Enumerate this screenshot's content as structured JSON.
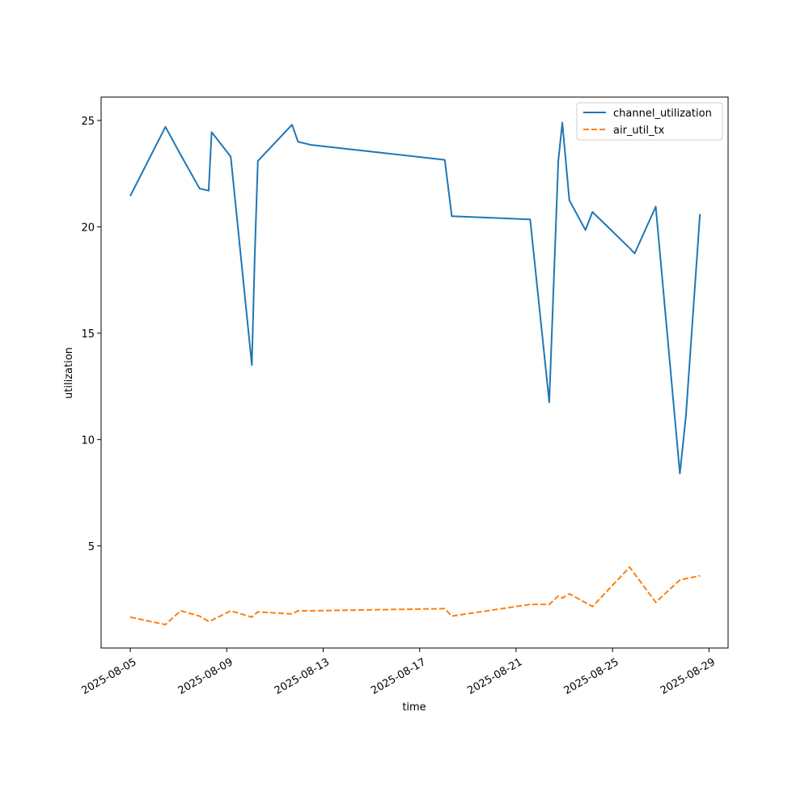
{
  "chart_data": {
    "type": "line",
    "title": "",
    "xlabel": "time",
    "ylabel": "utilization",
    "x_ticks": [
      "2025-08-05",
      "2025-08-09",
      "2025-08-13",
      "2025-08-17",
      "2025-08-21",
      "2025-08-25",
      "2025-08-29"
    ],
    "y_ticks": [
      "5",
      "10",
      "15",
      "20",
      "25"
    ],
    "xlim": [
      "2025-08-03T19:00",
      "2025-08-29T19:00"
    ],
    "ylim": [
      0.2,
      26.1
    ],
    "grid": false,
    "legend_position": "top-right",
    "series": [
      {
        "name": "channel_utilization",
        "color": "#1f77b4",
        "dash": "solid",
        "points": [
          [
            "2025-08-05T00:00",
            21.45
          ],
          [
            "2025-08-06T11:00",
            24.7
          ],
          [
            "2025-08-07T02:00",
            23.4
          ],
          [
            "2025-08-07T21:00",
            21.8
          ],
          [
            "2025-08-08T06:00",
            21.7
          ],
          [
            "2025-08-08T09:00",
            24.45
          ],
          [
            "2025-08-09T04:00",
            23.3
          ],
          [
            "2025-08-10T01:00",
            13.5
          ],
          [
            "2025-08-10T04:00",
            18.8
          ],
          [
            "2025-08-10T07:00",
            23.1
          ],
          [
            "2025-08-11T17:00",
            24.8
          ],
          [
            "2025-08-11T23:00",
            24.0
          ],
          [
            "2025-08-12T12:00",
            23.85
          ],
          [
            "2025-08-18T01:00",
            23.15
          ],
          [
            "2025-08-18T08:00",
            20.5
          ],
          [
            "2025-08-21T14:00",
            20.35
          ],
          [
            "2025-08-22T09:00",
            11.75
          ],
          [
            "2025-08-22T18:00",
            23.1
          ],
          [
            "2025-08-22T22:00",
            24.9
          ],
          [
            "2025-08-23T05:00",
            21.25
          ],
          [
            "2025-08-23T21:00",
            19.85
          ],
          [
            "2025-08-24T04:00",
            20.7
          ],
          [
            "2025-08-25T17:00",
            19.0
          ],
          [
            "2025-08-25T22:00",
            18.75
          ],
          [
            "2025-08-26T19:00",
            20.95
          ],
          [
            "2025-08-27T19:00",
            8.4
          ],
          [
            "2025-08-28T01:00",
            11.1
          ],
          [
            "2025-08-28T15:00",
            20.6
          ]
        ]
      },
      {
        "name": "air_util_tx",
        "color": "#ff7f0e",
        "dash": "dashed",
        "points": [
          [
            "2025-08-05T00:00",
            1.65
          ],
          [
            "2025-08-06T11:00",
            1.3
          ],
          [
            "2025-08-07T02:00",
            1.95
          ],
          [
            "2025-08-07T21:00",
            1.7
          ],
          [
            "2025-08-08T06:00",
            1.45
          ],
          [
            "2025-08-08T09:00",
            1.5
          ],
          [
            "2025-08-09T04:00",
            1.95
          ],
          [
            "2025-08-10T01:00",
            1.65
          ],
          [
            "2025-08-10T07:00",
            1.9
          ],
          [
            "2025-08-11T17:00",
            1.8
          ],
          [
            "2025-08-11T23:00",
            1.95
          ],
          [
            "2025-08-12T12:00",
            1.95
          ],
          [
            "2025-08-18T01:00",
            2.05
          ],
          [
            "2025-08-18T08:00",
            1.7
          ],
          [
            "2025-08-21T14:00",
            2.25
          ],
          [
            "2025-08-22T09:00",
            2.25
          ],
          [
            "2025-08-22T18:00",
            2.65
          ],
          [
            "2025-08-22T22:00",
            2.55
          ],
          [
            "2025-08-23T05:00",
            2.75
          ],
          [
            "2025-08-24T04:00",
            2.15
          ],
          [
            "2025-08-25T17:00",
            4.0
          ],
          [
            "2025-08-26T19:00",
            2.35
          ],
          [
            "2025-08-27T19:00",
            3.4
          ],
          [
            "2025-08-28T15:00",
            3.6
          ]
        ]
      }
    ]
  }
}
